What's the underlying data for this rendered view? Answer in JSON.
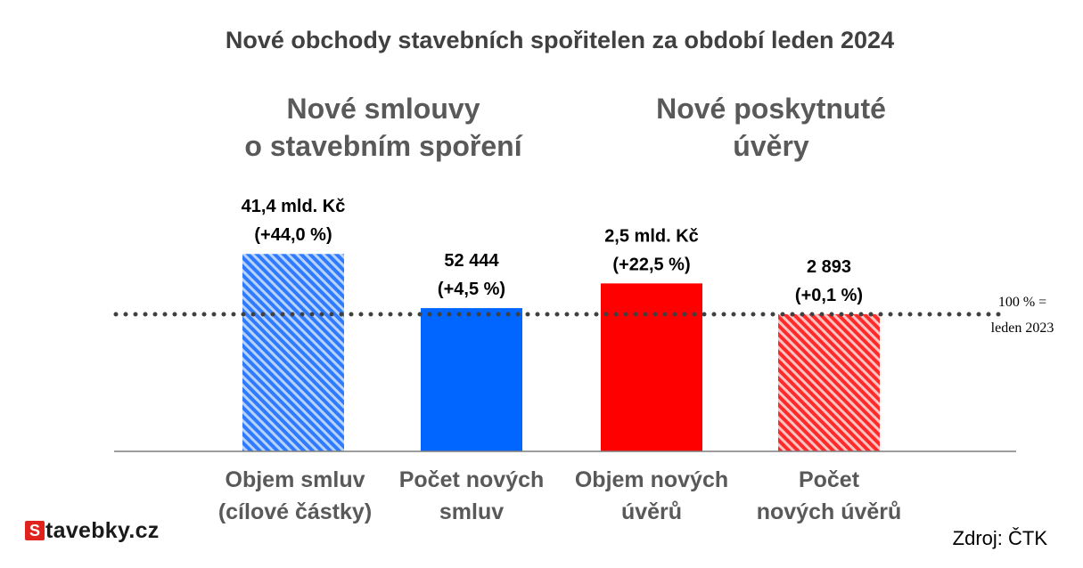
{
  "chart_data": {
    "type": "bar",
    "title": "Nové obchody stavebních spořitelen za období leden 2024",
    "groups": [
      {
        "title_lines": [
          "Nové smlouvy",
          "o stavebním spoření"
        ]
      },
      {
        "title_lines": [
          "Nové poskytnuté",
          "úvěry"
        ]
      }
    ],
    "categories": [
      [
        "Objem smluv",
        "(cílové částky)"
      ],
      [
        "Počet  nových",
        "smluv"
      ],
      [
        "Objem nových",
        "úvěrů"
      ],
      [
        "Počet",
        "nových úvěrů"
      ]
    ],
    "values": [
      144.0,
      104.5,
      122.5,
      100.1
    ],
    "value_unit": "% of leden 2023",
    "data_labels": [
      [
        "41,4 mld. Kč",
        "(+44,0 %)"
      ],
      [
        "52 444",
        "(+4,5 %)"
      ],
      [
        "2,5 mld. Kč",
        "(+22,5 %)"
      ],
      [
        "2 893",
        "(+0,1 %)"
      ]
    ],
    "bar_colors": [
      "#3d8bff",
      "#0066ff",
      "#ff0000",
      "#ff3b3b"
    ],
    "bar_patterns": [
      "hatched",
      "solid",
      "solid",
      "hatched"
    ],
    "reference_line": {
      "value": 100,
      "style": "dotted",
      "color": "#404040",
      "label_lines": [
        "100 % =",
        "leden 2023"
      ]
    },
    "ylim": [
      0,
      144
    ],
    "grid": false
  },
  "branding": {
    "logo_letter": "S",
    "logo_text": "tavebky.cz"
  },
  "source": "Zdroj: ČTK"
}
